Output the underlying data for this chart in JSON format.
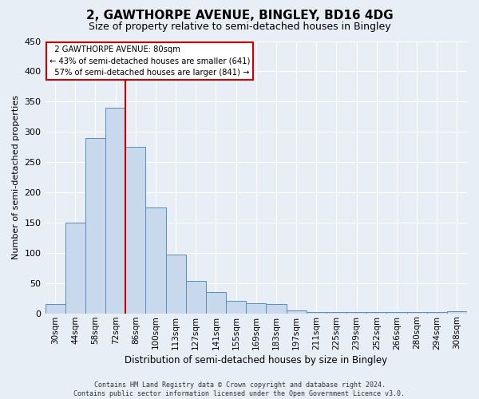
{
  "title": "2, GAWTHORPE AVENUE, BINGLEY, BD16 4DG",
  "subtitle": "Size of property relative to semi-detached houses in Bingley",
  "xlabel": "Distribution of semi-detached houses by size in Bingley",
  "ylabel": "Number of semi-detached properties",
  "bin_labels": [
    "30sqm",
    "44sqm",
    "58sqm",
    "72sqm",
    "86sqm",
    "100sqm",
    "113sqm",
    "127sqm",
    "141sqm",
    "155sqm",
    "169sqm",
    "183sqm",
    "197sqm",
    "211sqm",
    "225sqm",
    "239sqm",
    "252sqm",
    "266sqm",
    "280sqm",
    "294sqm",
    "308sqm"
  ],
  "bar_values": [
    15,
    150,
    290,
    340,
    275,
    175,
    97,
    53,
    35,
    20,
    17,
    15,
    5,
    2,
    2,
    2,
    2,
    2,
    2,
    2,
    3
  ],
  "bar_color": "#c9d9ed",
  "bar_edge_color": "#5b8db8",
  "pct_smaller": 43,
  "pct_larger": 57,
  "count_smaller": 641,
  "count_larger": 841,
  "ylim": [
    0,
    450
  ],
  "yticks": [
    0,
    50,
    100,
    150,
    200,
    250,
    300,
    350,
    400,
    450
  ],
  "annotation_box_facecolor": "#ffffff",
  "annotation_box_edgecolor": "#cc0000",
  "line_color": "#cc0000",
  "footer_line1": "Contains HM Land Registry data © Crown copyright and database right 2024.",
  "footer_line2": "Contains public sector information licensed under the Open Government Licence v3.0.",
  "bg_color": "#e8eef5",
  "grid_color": "#ffffff",
  "title_fontsize": 11,
  "subtitle_fontsize": 9
}
